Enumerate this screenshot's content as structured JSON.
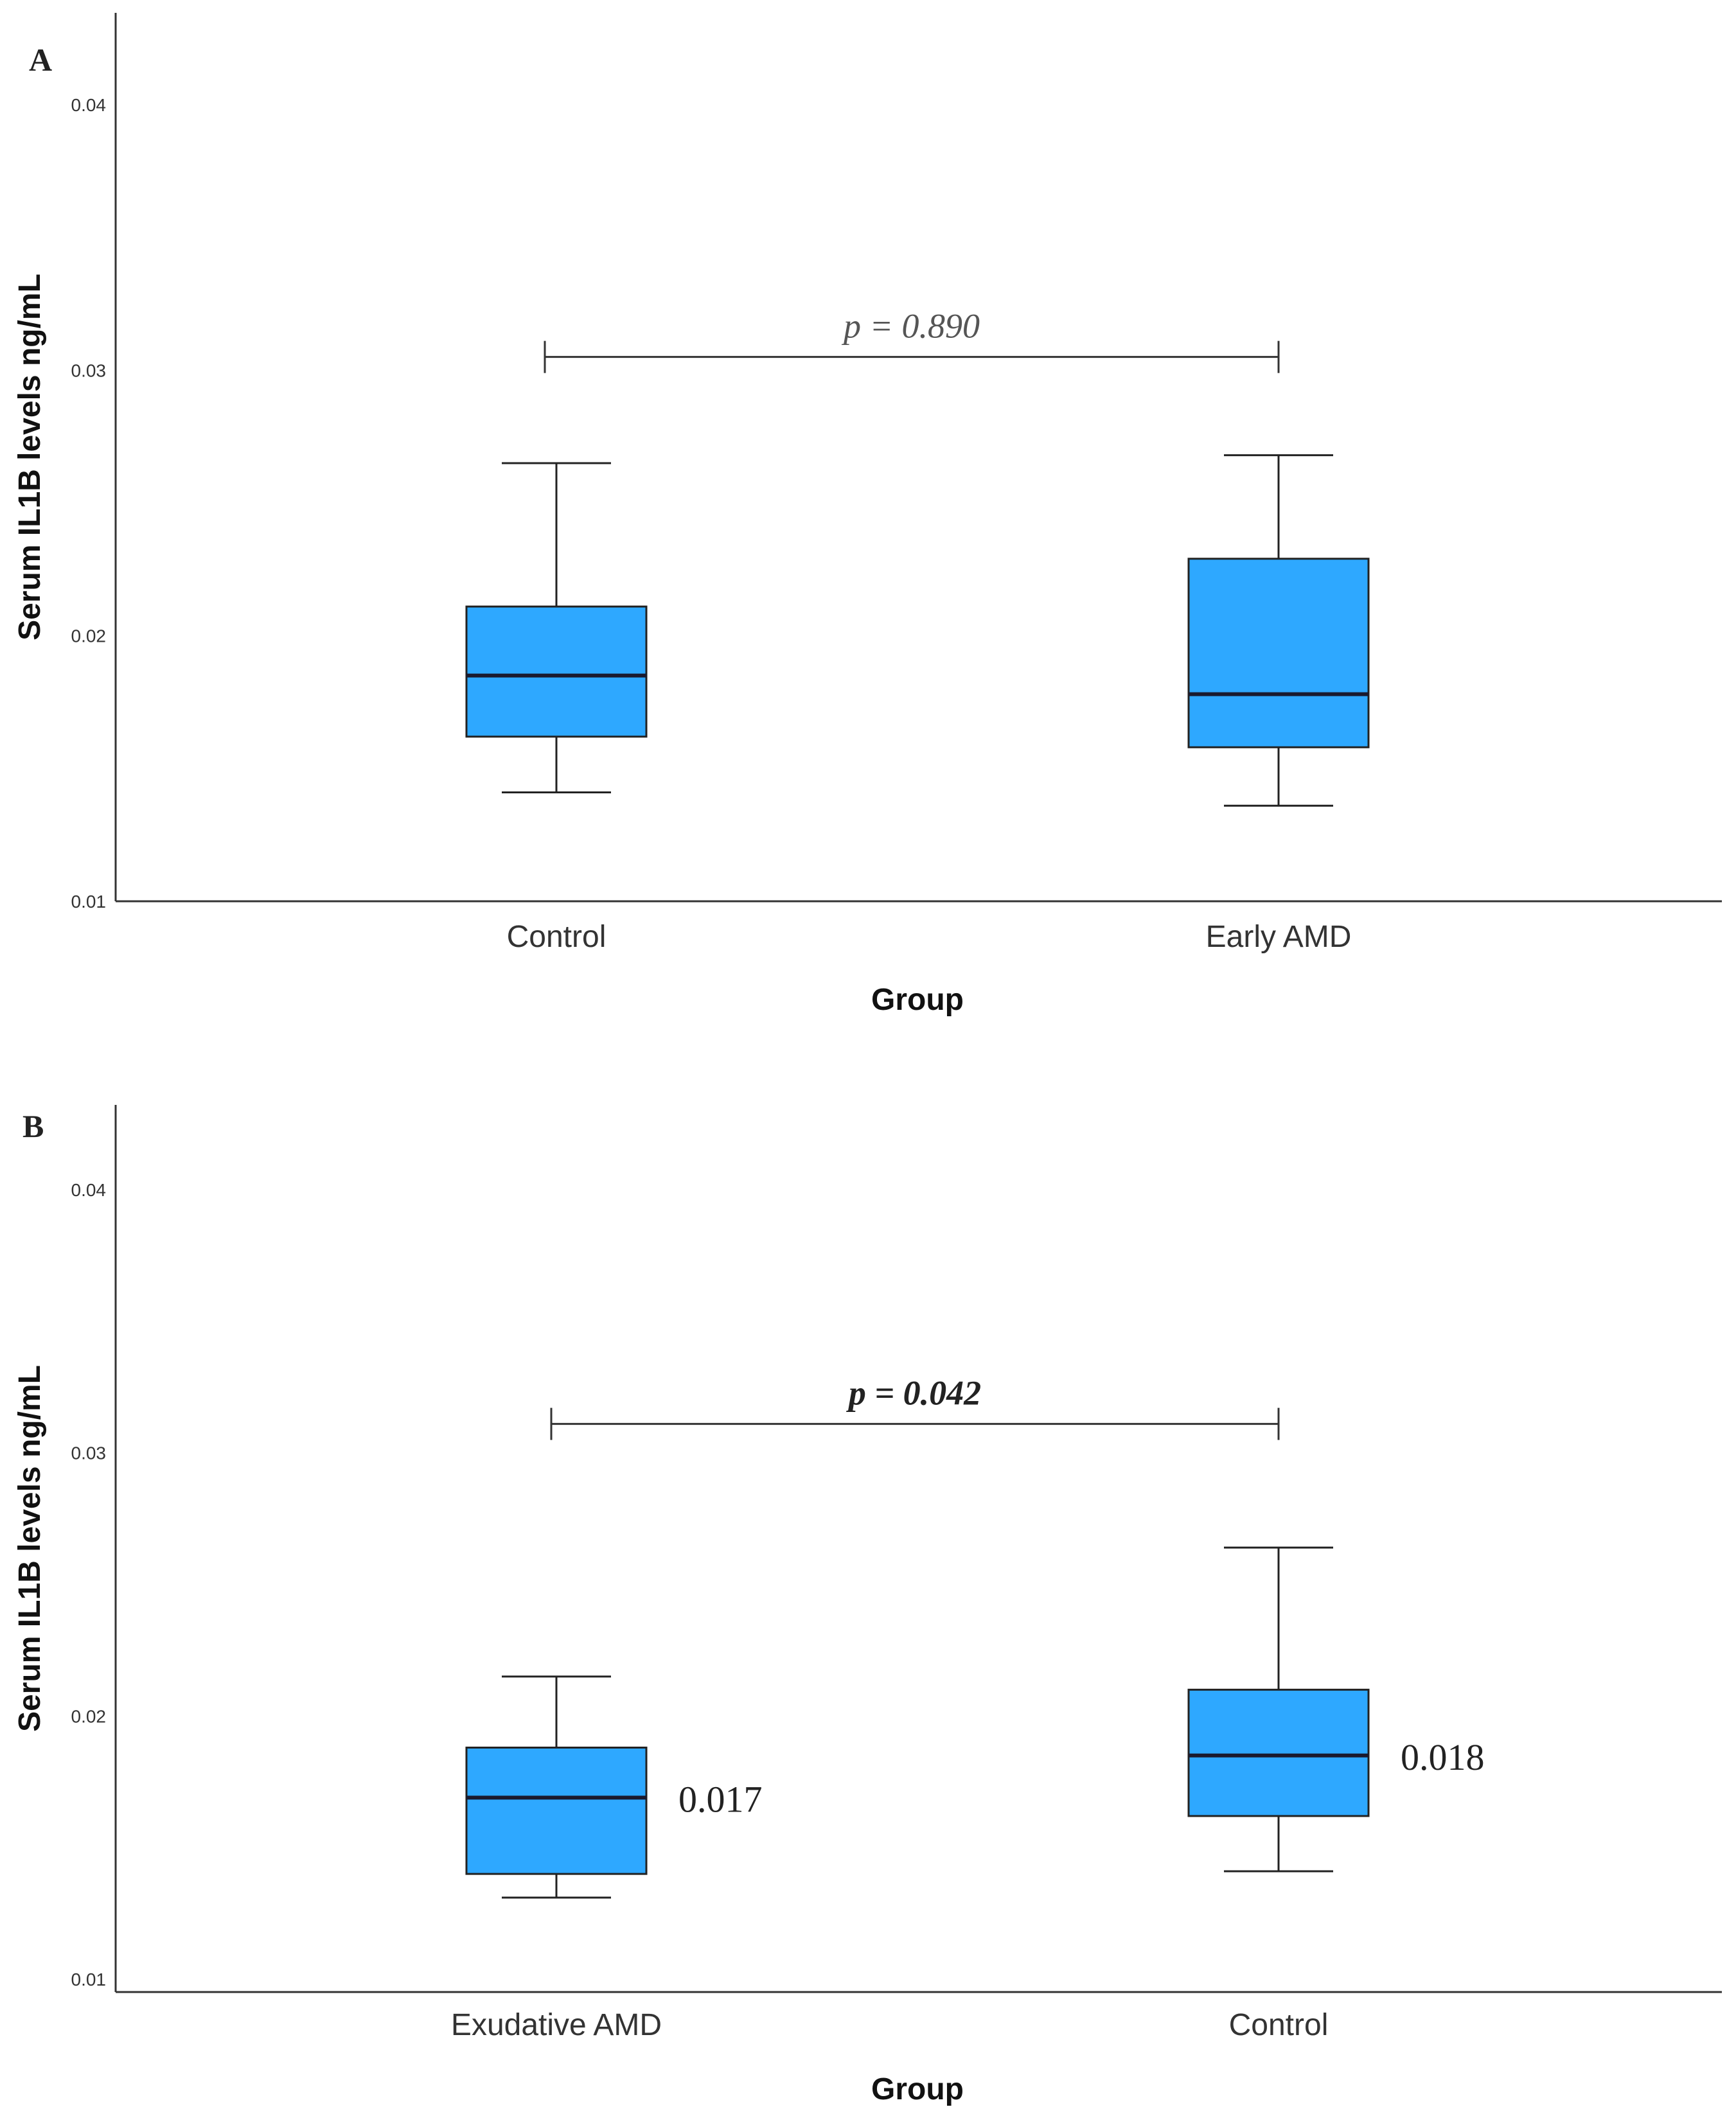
{
  "chart_data": [
    {
      "type": "boxplot",
      "panel_label": "A",
      "xlabel": "Group",
      "ylabel": "Serum IL1B levels ng/mL",
      "ylim": [
        0.01,
        0.0433
      ],
      "yticks": [
        "0.01",
        "0.02",
        "0.03",
        "0.04"
      ],
      "ytick_values": [
        0.01,
        0.02,
        0.03,
        0.04
      ],
      "box_color": "#2ea8ff",
      "categories": [
        "Control",
        "Early AMD"
      ],
      "boxes": [
        {
          "category": "Control",
          "whisker_low": 0.0141,
          "q1": 0.0162,
          "median": 0.0185,
          "q3": 0.0211,
          "whisker_high": 0.0265
        },
        {
          "category": "Early AMD",
          "whisker_low": 0.0136,
          "q1": 0.0158,
          "median": 0.0178,
          "q3": 0.0229,
          "whisker_high": 0.0268
        }
      ],
      "comparison": {
        "label": "p = 0.890",
        "bold": false,
        "y": 0.0305
      }
    },
    {
      "type": "boxplot",
      "panel_label": "B",
      "xlabel": "Group",
      "ylabel": "Serum IL1B levels ng/mL",
      "ylim": [
        0.01,
        0.0433
      ],
      "yticks": [
        "0.01",
        "0.02",
        "0.03",
        "0.04"
      ],
      "ytick_values": [
        0.01,
        0.02,
        0.03,
        0.04
      ],
      "box_color": "#2ea8ff",
      "categories": [
        "Exudative AMD",
        "Control"
      ],
      "boxes": [
        {
          "category": "Exudative AMD",
          "whisker_low": 0.0131,
          "q1": 0.014,
          "median": 0.0169,
          "q3": 0.0188,
          "whisker_high": 0.0215,
          "median_label": "0.017"
        },
        {
          "category": "Control",
          "whisker_low": 0.0141,
          "q1": 0.0162,
          "median": 0.0185,
          "q3": 0.021,
          "whisker_high": 0.0264,
          "median_label": "0.018"
        }
      ],
      "comparison": {
        "label": "p = 0.042",
        "bold": true,
        "y": 0.0311
      }
    }
  ]
}
